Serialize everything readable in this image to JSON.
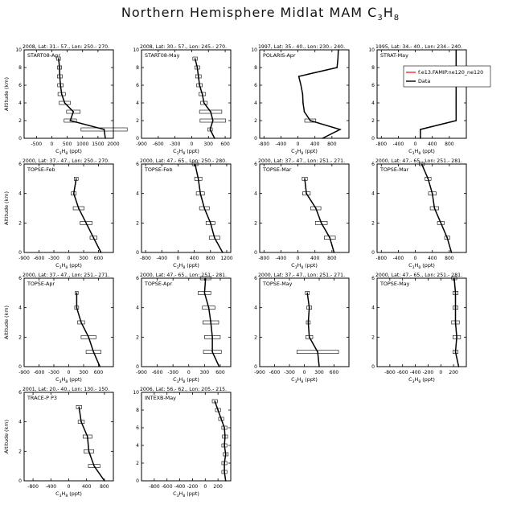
{
  "figure": {
    "title_main": "Northern Hemisphere Midlat MAM C",
    "title_sub1": "3",
    "title_mid": "H",
    "title_sub2": "8"
  },
  "axis_text": {
    "ylabel": "Altitude (km)",
    "xlabel_main": "C",
    "xlabel_sub1": "3",
    "xlabel_mid": "H",
    "xlabel_sub2": "8",
    "xlabel_unit": " (ppt)"
  },
  "legend": {
    "model": "f.e13.FAMIP.ne120_ne120",
    "obs": "Data"
  },
  "colors": {
    "model": "#ff0000",
    "obs": "#000000"
  },
  "chart_data": [
    {
      "type": "line",
      "header": "2008, Lat: 31.- 57., Lon: 250.- 270.",
      "label": "START08-Apr",
      "xlim": [
        -900,
        2000
      ],
      "ylim": [
        0,
        10
      ],
      "xticks": [
        -500,
        0,
        500,
        1000,
        1500,
        2000
      ],
      "data": [
        [
          1740,
          0
        ],
        [
          1700,
          1
        ],
        [
          600,
          2
        ],
        [
          700,
          3
        ],
        [
          420,
          4
        ],
        [
          320,
          5
        ],
        [
          280,
          6
        ],
        [
          260,
          7
        ],
        [
          250,
          8
        ],
        [
          220,
          9
        ]
      ],
      "errors": [
        [
          1700,
          1
        ],
        [
          600,
          2
        ],
        [
          700,
          3
        ],
        [
          420,
          4
        ],
        [
          320,
          5
        ],
        [
          280,
          6
        ],
        [
          260,
          7
        ],
        [
          250,
          8
        ],
        [
          220,
          9
        ]
      ],
      "error_hw": [
        750,
        200,
        220,
        180,
        120,
        90,
        80,
        70,
        60
      ]
    },
    {
      "type": "line",
      "header": "2008, Lat: 30.- 57., Lon: 245.- 270.",
      "label": "START08-May",
      "xlim": [
        -900,
        700
      ],
      "ylim": [
        0,
        10
      ],
      "xticks": [
        -900,
        -600,
        -300,
        0,
        300,
        600
      ],
      "data": [
        [
          410,
          0
        ],
        [
          330,
          1
        ],
        [
          380,
          2
        ],
        [
          340,
          3
        ],
        [
          220,
          4
        ],
        [
          190,
          5
        ],
        [
          140,
          6
        ],
        [
          120,
          7
        ],
        [
          100,
          8
        ],
        [
          60,
          9
        ]
      ],
      "errors": [
        [
          330,
          1
        ],
        [
          380,
          2
        ],
        [
          340,
          3
        ],
        [
          220,
          4
        ],
        [
          190,
          5
        ],
        [
          140,
          6
        ],
        [
          120,
          7
        ],
        [
          100,
          8
        ],
        [
          60,
          9
        ]
      ],
      "error_hw": [
        40,
        230,
        200,
        60,
        60,
        50,
        50,
        45,
        40
      ]
    },
    {
      "type": "line",
      "header": "1997, Lat: 35.- 40., Lon: 230.- 240.",
      "label": "POLARIS-Apr",
      "xlim": [
        -900,
        1200
      ],
      "ylim": [
        0,
        10
      ],
      "xticks": [
        -800,
        -400,
        0,
        400,
        800
      ],
      "data": [
        [
          580,
          0
        ],
        [
          990,
          1
        ],
        [
          290,
          2
        ],
        [
          150,
          3
        ],
        [
          120,
          4
        ],
        [
          110,
          5
        ],
        [
          70,
          6
        ],
        [
          20,
          7
        ],
        [
          920,
          8
        ],
        [
          940,
          9
        ],
        [
          950,
          10
        ]
      ],
      "errors": [
        [
          290,
          2
        ]
      ],
      "error_hw": [
        130
      ]
    },
    {
      "type": "line",
      "header": "1995, Lat: 34.- 40., Lon: 234.- 240.",
      "label": "STRAT-May",
      "xlim": [
        -900,
        1200
      ],
      "ylim": [
        0,
        10
      ],
      "xticks": [
        -800,
        -400,
        0,
        400,
        800
      ],
      "data": [
        [
          120,
          0
        ],
        [
          120,
          1
        ],
        [
          960,
          2
        ],
        [
          960,
          4
        ],
        [
          960,
          6
        ],
        [
          960,
          8
        ],
        [
          960,
          10
        ]
      ],
      "errors": [],
      "error_hw": []
    },
    {
      "type": "line",
      "header": "2000, Lat: 37.- 47., Lon: 250.- 270.",
      "label": "TOPSE-Feb",
      "xlim": [
        -900,
        900
      ],
      "ylim": [
        0,
        6
      ],
      "xticks": [
        -900,
        -600,
        -300,
        0,
        300,
        600
      ],
      "data": [
        [
          650,
          0
        ],
        [
          500,
          1
        ],
        [
          350,
          2
        ],
        [
          200,
          3
        ],
        [
          100,
          4
        ],
        [
          150,
          5
        ]
      ],
      "errors": [
        [
          500,
          1
        ],
        [
          350,
          2
        ],
        [
          200,
          3
        ],
        [
          100,
          4
        ],
        [
          150,
          5
        ]
      ],
      "error_hw": [
        70,
        120,
        110,
        50,
        40
      ]
    },
    {
      "type": "line",
      "header": "2000, Lat: 47.- 65., Lon: 250.- 280.",
      "label": "TOPSE-Feb",
      "xlim": [
        -900,
        1300
      ],
      "ylim": [
        0,
        6
      ],
      "xticks": [
        -800,
        -400,
        0,
        400,
        800,
        1200
      ],
      "data": [
        [
          1100,
          0
        ],
        [
          900,
          1
        ],
        [
          800,
          2
        ],
        [
          650,
          3
        ],
        [
          550,
          4
        ],
        [
          500,
          5
        ],
        [
          420,
          6
        ]
      ],
      "errors": [
        [
          900,
          1
        ],
        [
          800,
          2
        ],
        [
          650,
          3
        ],
        [
          550,
          4
        ],
        [
          500,
          5
        ],
        [
          420,
          6
        ]
      ],
      "error_hw": [
        130,
        110,
        120,
        100,
        90,
        70
      ]
    },
    {
      "type": "line",
      "header": "2000, Lat: 37.- 47., Lon: 251.- 271.",
      "label": "TOPSE-Mar",
      "xlim": [
        -900,
        1200
      ],
      "ylim": [
        0,
        6
      ],
      "xticks": [
        -800,
        -400,
        0,
        400,
        800
      ],
      "data": [
        [
          850,
          0
        ],
        [
          750,
          1
        ],
        [
          550,
          2
        ],
        [
          420,
          3
        ],
        [
          200,
          4
        ],
        [
          160,
          5
        ]
      ],
      "errors": [
        [
          750,
          1
        ],
        [
          550,
          2
        ],
        [
          420,
          3
        ],
        [
          200,
          4
        ],
        [
          160,
          5
        ]
      ],
      "error_hw": [
        130,
        140,
        120,
        90,
        60
      ]
    },
    {
      "type": "line",
      "header": "2000, Lat: 47.- 65., Lon: 251.- 281.",
      "label": "TOPSE-Mar",
      "xlim": [
        -900,
        1200
      ],
      "ylim": [
        0,
        6
      ],
      "xticks": [
        -800,
        -400,
        0,
        400,
        800
      ],
      "data": [
        [
          850,
          0
        ],
        [
          750,
          1
        ],
        [
          600,
          2
        ],
        [
          450,
          3
        ],
        [
          400,
          4
        ],
        [
          300,
          5
        ],
        [
          150,
          6
        ]
      ],
      "errors": [
        [
          750,
          1
        ],
        [
          600,
          2
        ],
        [
          450,
          3
        ],
        [
          400,
          4
        ],
        [
          300,
          5
        ],
        [
          150,
          6
        ]
      ],
      "error_hw": [
        60,
        80,
        100,
        90,
        70,
        60
      ]
    },
    {
      "type": "line",
      "header": "2000, Lat: 37.- 47., Lon: 251.- 271.",
      "label": "TOPSE-Apr",
      "xlim": [
        -900,
        900
      ],
      "ylim": [
        0,
        6
      ],
      "xticks": [
        -900,
        -600,
        -300,
        0,
        300,
        600
      ],
      "data": [
        [
          630,
          0
        ],
        [
          500,
          1
        ],
        [
          400,
          2
        ],
        [
          250,
          3
        ],
        [
          160,
          4
        ],
        [
          160,
          5
        ]
      ],
      "errors": [
        [
          500,
          1
        ],
        [
          400,
          2
        ],
        [
          250,
          3
        ],
        [
          160,
          4
        ],
        [
          160,
          5
        ]
      ],
      "error_hw": [
        150,
        150,
        70,
        40,
        30
      ]
    },
    {
      "type": "line",
      "header": "2000, Lat: 47.- 65., Lon: 251.- 281.",
      "label": "TOPSE-Apr",
      "xlim": [
        -900,
        800
      ],
      "ylim": [
        0,
        6
      ],
      "xticks": [
        -900,
        -600,
        -300,
        0,
        300,
        600
      ],
      "data": [
        [
          580,
          0
        ],
        [
          450,
          1
        ],
        [
          450,
          2
        ],
        [
          420,
          3
        ],
        [
          380,
          4
        ],
        [
          300,
          5
        ],
        [
          320,
          6
        ]
      ],
      "errors": [
        [
          450,
          1
        ],
        [
          450,
          2
        ],
        [
          420,
          3
        ],
        [
          380,
          4
        ],
        [
          300,
          5
        ],
        [
          320,
          6
        ]
      ],
      "error_hw": [
        170,
        150,
        150,
        120,
        120,
        100
      ]
    },
    {
      "type": "line",
      "header": "2000, Lat: 37.- 47., Lon: 251.- 271.",
      "label": "TOPSE-May",
      "xlim": [
        -900,
        900
      ],
      "ylim": [
        0,
        6
      ],
      "xticks": [
        -900,
        -600,
        -300,
        0,
        300,
        600
      ],
      "data": [
        [
          300,
          0
        ],
        [
          270,
          1
        ],
        [
          100,
          2
        ],
        [
          80,
          3
        ],
        [
          100,
          4
        ],
        [
          60,
          5
        ]
      ],
      "errors": [
        [
          270,
          1
        ],
        [
          100,
          2
        ],
        [
          80,
          3
        ],
        [
          100,
          4
        ],
        [
          60,
          5
        ]
      ],
      "error_hw": [
        420,
        70,
        40,
        50,
        40
      ]
    },
    {
      "type": "line",
      "header": "2000, Lat: 47.- 65., Lon: 251.- 281.",
      "label": "TOPSE-May",
      "xlim": [
        -1000,
        400
      ],
      "ylim": [
        0,
        6
      ],
      "xticks": [
        -800,
        -600,
        -400,
        -200,
        0,
        200
      ],
      "data": [
        [
          280,
          0
        ],
        [
          230,
          1
        ],
        [
          250,
          2
        ],
        [
          230,
          3
        ],
        [
          230,
          4
        ],
        [
          230,
          5
        ],
        [
          210,
          6
        ]
      ],
      "errors": [
        [
          230,
          1
        ],
        [
          250,
          2
        ],
        [
          230,
          3
        ],
        [
          230,
          4
        ],
        [
          230,
          5
        ],
        [
          210,
          6
        ]
      ],
      "error_hw": [
        40,
        60,
        60,
        40,
        40,
        40
      ]
    },
    {
      "type": "line",
      "header": "2001, Lat: 20.- 40., Lon: 130.- 150.",
      "label": "TRACE-P P3",
      "xlim": [
        -1000,
        1000
      ],
      "ylim": [
        0,
        6
      ],
      "xticks": [
        -800,
        -400,
        0,
        400,
        800
      ],
      "data": [
        [
          800,
          0
        ],
        [
          570,
          1
        ],
        [
          450,
          2
        ],
        [
          420,
          3
        ],
        [
          280,
          4
        ],
        [
          230,
          5
        ]
      ],
      "errors": [
        [
          570,
          1
        ],
        [
          450,
          2
        ],
        [
          420,
          3
        ],
        [
          280,
          4
        ],
        [
          230,
          5
        ]
      ],
      "error_hw": [
        130,
        110,
        100,
        70,
        60
      ]
    },
    {
      "type": "line",
      "header": "2006, Lat: 56.- 62., Lon: 205.- 215.",
      "label": "INTEXB-May",
      "xlim": [
        -1000,
        400
      ],
      "ylim": [
        0,
        10
      ],
      "xticks": [
        -800,
        -600,
        -400,
        -200,
        0,
        200
      ],
      "data": [
        [
          320,
          0
        ],
        [
          300,
          1
        ],
        [
          300,
          2
        ],
        [
          320,
          3
        ],
        [
          300,
          4
        ],
        [
          310,
          5
        ],
        [
          300,
          6
        ],
        [
          250,
          7
        ],
        [
          200,
          8
        ],
        [
          150,
          9
        ]
      ],
      "errors": [
        [
          300,
          1
        ],
        [
          300,
          2
        ],
        [
          320,
          3
        ],
        [
          300,
          4
        ],
        [
          310,
          5
        ],
        [
          300,
          6
        ],
        [
          250,
          7
        ],
        [
          200,
          8
        ],
        [
          150,
          9
        ]
      ],
      "error_hw": [
        40,
        40,
        40,
        40,
        40,
        40,
        40,
        40,
        40
      ]
    }
  ]
}
